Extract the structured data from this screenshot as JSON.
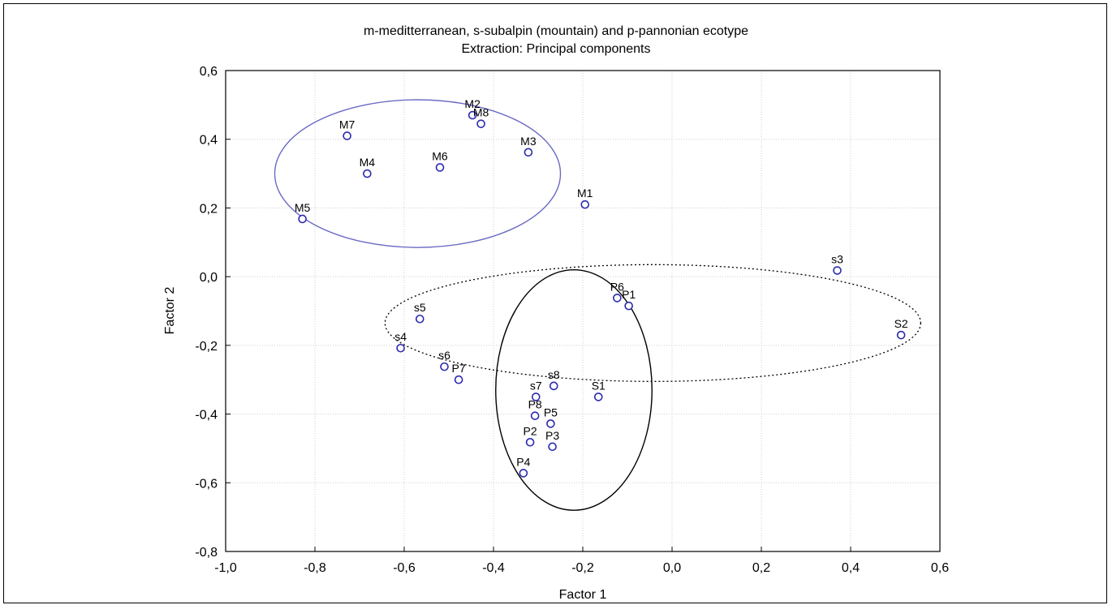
{
  "chart_data": {
    "type": "scatter",
    "title": "m-meditterranean, s-subalpin (mountain) and p-pannonian ecotype",
    "subtitle": "Extraction: Principal components",
    "xlabel": "Factor 1",
    "ylabel": "Factor 2",
    "xlim": [
      -1.0,
      0.6
    ],
    "ylim": [
      -0.8,
      0.6
    ],
    "xticks": [
      "-1,0",
      "-0,8",
      "-0,6",
      "-0,4",
      "-0,2",
      "0,0",
      "0,2",
      "0,4",
      "0,6"
    ],
    "yticks": [
      "-0,8",
      "-0,6",
      "-0,4",
      "-0,2",
      "0,0",
      "0,2",
      "0,4",
      "0,6"
    ],
    "grid": true,
    "marker_color": "#2b2bb0",
    "points": [
      {
        "label": "M1",
        "x": -0.195,
        "y": 0.21
      },
      {
        "label": "M2",
        "x": -0.447,
        "y": 0.47
      },
      {
        "label": "M8",
        "x": -0.428,
        "y": 0.445
      },
      {
        "label": "M3",
        "x": -0.322,
        "y": 0.362
      },
      {
        "label": "M4",
        "x": -0.683,
        "y": 0.3
      },
      {
        "label": "M5",
        "x": -0.828,
        "y": 0.168
      },
      {
        "label": "M6",
        "x": -0.52,
        "y": 0.318
      },
      {
        "label": "M7",
        "x": -0.728,
        "y": 0.41
      },
      {
        "label": "s3",
        "x": 0.37,
        "y": 0.018
      },
      {
        "label": "S2",
        "x": 0.513,
        "y": -0.17
      },
      {
        "label": "P6",
        "x": -0.123,
        "y": -0.062
      },
      {
        "label": "P1",
        "x": -0.097,
        "y": -0.085
      },
      {
        "label": "s5",
        "x": -0.565,
        "y": -0.123
      },
      {
        "label": "s4",
        "x": -0.608,
        "y": -0.208
      },
      {
        "label": "s6",
        "x": -0.51,
        "y": -0.262
      },
      {
        "label": "P7",
        "x": -0.478,
        "y": -0.3
      },
      {
        "label": "s8",
        "x": -0.265,
        "y": -0.318
      },
      {
        "label": "s7",
        "x": -0.305,
        "y": -0.35
      },
      {
        "label": "S1",
        "x": -0.165,
        "y": -0.35
      },
      {
        "label": "P8",
        "x": -0.307,
        "y": -0.405
      },
      {
        "label": "P5",
        "x": -0.272,
        "y": -0.428
      },
      {
        "label": "P2",
        "x": -0.318,
        "y": -0.482
      },
      {
        "label": "P3",
        "x": -0.268,
        "y": -0.495
      },
      {
        "label": "P4",
        "x": -0.333,
        "y": -0.572
      }
    ],
    "groups": [
      {
        "name": "mediterranean",
        "shape": "ellipse",
        "style": "solid",
        "color": "#6a6ac4",
        "cx": -0.57,
        "cy": 0.3,
        "rx": 0.32,
        "ry": 0.215
      },
      {
        "name": "subalpine",
        "shape": "ellipse",
        "style": "dotted",
        "color": "#000000",
        "cx": -0.043,
        "cy": -0.135,
        "rx": 0.6,
        "ry": 0.17
      },
      {
        "name": "pannonian",
        "shape": "ellipse",
        "style": "solid",
        "color": "#000000",
        "cx": -0.22,
        "cy": -0.33,
        "rx": 0.175,
        "ry": 0.35
      }
    ]
  }
}
